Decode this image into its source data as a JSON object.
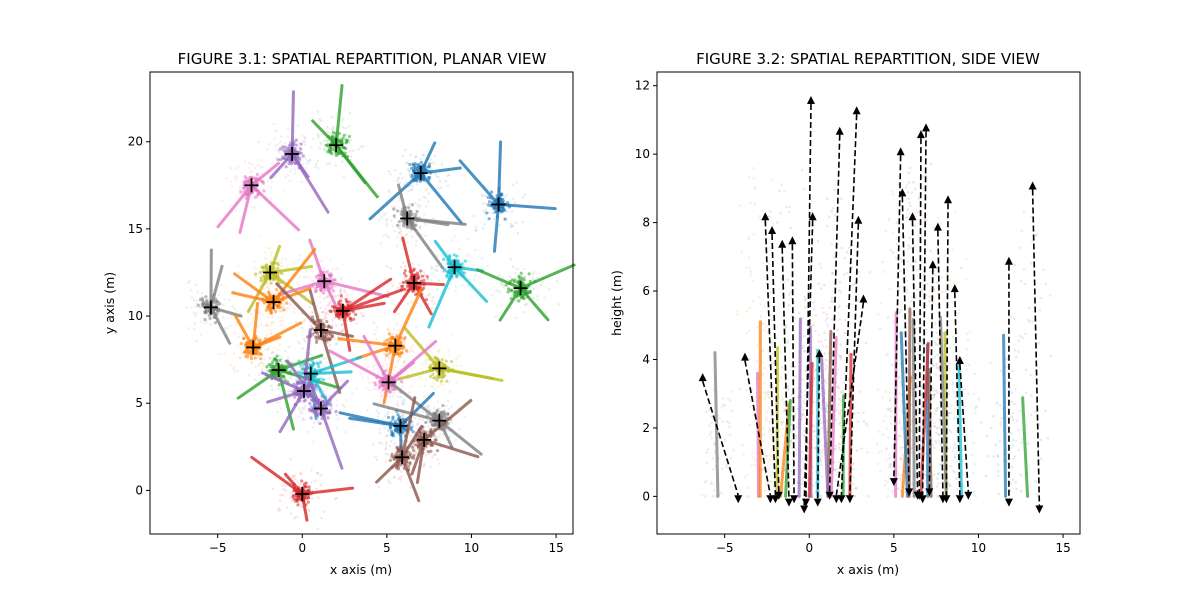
{
  "chart_data": [
    {
      "type": "scatter",
      "title": "FIGURE 3.1: SPATIAL REPARTITION, PLANAR VIEW",
      "xlabel": "x axis (m)",
      "ylabel": "y axis (m)",
      "xlim": [
        -9,
        16
      ],
      "ylim": [
        -2.5,
        24
      ],
      "xticks": [
        -5,
        0,
        5,
        10,
        15
      ],
      "yticks": [
        0,
        5,
        10,
        15,
        20
      ],
      "marker": "+",
      "marker_color": "#000000",
      "tree_colors": [
        "#1f77b4",
        "#ff7f0e",
        "#2ca02c",
        "#d62728",
        "#9467bd",
        "#8c564b",
        "#e377c2",
        "#7f7f7f",
        "#bcbd22",
        "#17becf"
      ],
      "trees": [
        {
          "x": -0.6,
          "y": 19.3,
          "color": "#9467bd"
        },
        {
          "x": 2.0,
          "y": 19.8,
          "color": "#2ca02c"
        },
        {
          "x": -3.0,
          "y": 17.5,
          "color": "#e377c2"
        },
        {
          "x": 7.0,
          "y": 18.2,
          "color": "#1f77b4"
        },
        {
          "x": 11.6,
          "y": 16.4,
          "color": "#1f77b4"
        },
        {
          "x": 6.2,
          "y": 15.6,
          "color": "#7f7f7f"
        },
        {
          "x": -1.9,
          "y": 12.5,
          "color": "#bcbd22"
        },
        {
          "x": 1.3,
          "y": 12.0,
          "color": "#e377c2"
        },
        {
          "x": 9.0,
          "y": 12.8,
          "color": "#17becf"
        },
        {
          "x": 6.6,
          "y": 11.9,
          "color": "#d62728"
        },
        {
          "x": 12.9,
          "y": 11.6,
          "color": "#2ca02c"
        },
        {
          "x": -1.7,
          "y": 10.8,
          "color": "#ff7f0e"
        },
        {
          "x": -5.4,
          "y": 10.5,
          "color": "#7f7f7f"
        },
        {
          "x": 2.4,
          "y": 10.3,
          "color": "#d62728"
        },
        {
          "x": 1.1,
          "y": 9.2,
          "color": "#8c564b"
        },
        {
          "x": -2.9,
          "y": 8.2,
          "color": "#ff7f0e"
        },
        {
          "x": 5.5,
          "y": 8.3,
          "color": "#ff7f0e"
        },
        {
          "x": -1.4,
          "y": 6.9,
          "color": "#2ca02c"
        },
        {
          "x": 0.5,
          "y": 6.7,
          "color": "#17becf"
        },
        {
          "x": 8.1,
          "y": 7.0,
          "color": "#bcbd22"
        },
        {
          "x": 5.1,
          "y": 6.2,
          "color": "#e377c2"
        },
        {
          "x": 0.1,
          "y": 5.7,
          "color": "#9467bd"
        },
        {
          "x": 1.1,
          "y": 4.7,
          "color": "#9467bd"
        },
        {
          "x": 8.1,
          "y": 4.0,
          "color": "#7f7f7f"
        },
        {
          "x": 5.8,
          "y": 3.7,
          "color": "#1f77b4"
        },
        {
          "x": 7.2,
          "y": 2.9,
          "color": "#8c564b"
        },
        {
          "x": 5.9,
          "y": 1.9,
          "color": "#8c564b"
        },
        {
          "x": 0.0,
          "y": -0.2,
          "color": "#d62728"
        }
      ]
    },
    {
      "type": "scatter",
      "title": "FIGURE 3.2: SPATIAL REPARTITION, SIDE VIEW",
      "xlabel": "x axis (m)",
      "ylabel": "height (m)",
      "xlim": [
        -9,
        16
      ],
      "ylim": [
        -1.1,
        12.4
      ],
      "xticks": [
        -5,
        0,
        5,
        10,
        15
      ],
      "yticks": [
        0,
        2,
        4,
        6,
        8,
        10,
        12
      ],
      "arrow_style": "dashed",
      "arrow_color": "#000000",
      "arrows": [
        {
          "x": -6.3,
          "top": 3.6,
          "bx": -4.2,
          "bottom": -0.2
        },
        {
          "x": -3.8,
          "top": 4.2,
          "bx": -2.3,
          "bottom": -0.2
        },
        {
          "x": -2.6,
          "top": 8.3,
          "bx": -2.0,
          "bottom": -0.2
        },
        {
          "x": -2.2,
          "top": 7.9,
          "bx": -1.8,
          "bottom": -0.1
        },
        {
          "x": -1.6,
          "top": 7.5,
          "bx": -1.2,
          "bottom": -0.3
        },
        {
          "x": -1.0,
          "top": 7.6,
          "bx": -0.9,
          "bottom": -0.2
        },
        {
          "x": 0.1,
          "top": 11.7,
          "bx": -0.2,
          "bottom": -0.3
        },
        {
          "x": 0.2,
          "top": 8.3,
          "bx": -0.3,
          "bottom": -0.5
        },
        {
          "x": 0.6,
          "top": 4.3,
          "bx": 0.5,
          "bottom": -0.3
        },
        {
          "x": 1.8,
          "top": 10.8,
          "bx": 1.2,
          "bottom": -0.1
        },
        {
          "x": 2.8,
          "top": 11.4,
          "bx": 1.9,
          "bottom": -0.2
        },
        {
          "x": 2.9,
          "top": 8.2,
          "bx": 2.4,
          "bottom": -0.2
        },
        {
          "x": 3.2,
          "top": 5.9,
          "bx": 1.6,
          "bottom": -0.2
        },
        {
          "x": 5.4,
          "top": 10.2,
          "bx": 5.0,
          "bottom": 0.3
        },
        {
          "x": 5.5,
          "top": 9.0,
          "bx": 5.9,
          "bottom": 0.0
        },
        {
          "x": 6.1,
          "top": 8.3,
          "bx": 6.4,
          "bottom": -0.1
        },
        {
          "x": 6.6,
          "top": 10.7,
          "bx": 6.5,
          "bottom": -0.1
        },
        {
          "x": 6.9,
          "top": 10.9,
          "bx": 6.7,
          "bottom": -0.2
        },
        {
          "x": 7.3,
          "top": 6.9,
          "bx": 7.1,
          "bottom": 0.0
        },
        {
          "x": 7.6,
          "top": 8.0,
          "bx": 7.9,
          "bottom": -0.2
        },
        {
          "x": 8.2,
          "top": 8.8,
          "bx": 8.1,
          "bottom": -0.2
        },
        {
          "x": 8.6,
          "top": 6.2,
          "bx": 8.9,
          "bottom": -0.2
        },
        {
          "x": 8.9,
          "top": 4.1,
          "bx": 9.4,
          "bottom": -0.1
        },
        {
          "x": 11.8,
          "top": 7.0,
          "bx": 11.8,
          "bottom": -0.3
        },
        {
          "x": 13.2,
          "top": 9.2,
          "bx": 13.6,
          "bottom": -0.5
        }
      ]
    }
  ]
}
